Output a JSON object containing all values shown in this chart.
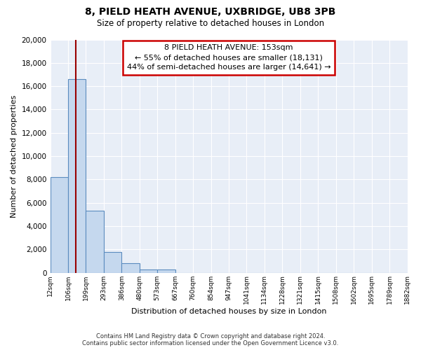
{
  "title": "8, PIELD HEATH AVENUE, UXBRIDGE, UB8 3PB",
  "subtitle": "Size of property relative to detached houses in London",
  "xlabel": "Distribution of detached houses by size in London",
  "ylabel": "Number of detached properties",
  "bar_values": [
    8200,
    16600,
    5300,
    1800,
    800,
    300,
    300,
    0,
    0,
    0,
    0,
    0,
    0,
    0,
    0,
    0,
    0,
    0,
    0,
    0
  ],
  "bin_labels": [
    "12sqm",
    "106sqm",
    "199sqm",
    "293sqm",
    "386sqm",
    "480sqm",
    "573sqm",
    "667sqm",
    "760sqm",
    "854sqm",
    "947sqm",
    "1041sqm",
    "1134sqm",
    "1228sqm",
    "1321sqm",
    "1415sqm",
    "1508sqm",
    "1602sqm",
    "1695sqm",
    "1789sqm",
    "1882sqm"
  ],
  "bar_color": "#c5d8ee",
  "bar_edge_color": "#5b8cbf",
  "background_color": "#ffffff",
  "plot_bg_color": "#e8eef7",
  "grid_color": "#ffffff",
  "red_line_x": 1.44,
  "annotation_title": "8 PIELD HEATH AVENUE: 153sqm",
  "annotation_line1": "← 55% of detached houses are smaller (18,131)",
  "annotation_line2": "44% of semi-detached houses are larger (14,641) →",
  "annotation_box_facecolor": "#ffffff",
  "annotation_box_edgecolor": "#cc0000",
  "red_line_color": "#990000",
  "ylim": [
    0,
    20000
  ],
  "yticks": [
    0,
    2000,
    4000,
    6000,
    8000,
    10000,
    12000,
    14000,
    16000,
    18000,
    20000
  ],
  "footnote1": "Contains HM Land Registry data © Crown copyright and database right 2024.",
  "footnote2": "Contains public sector information licensed under the Open Government Licence v3.0."
}
